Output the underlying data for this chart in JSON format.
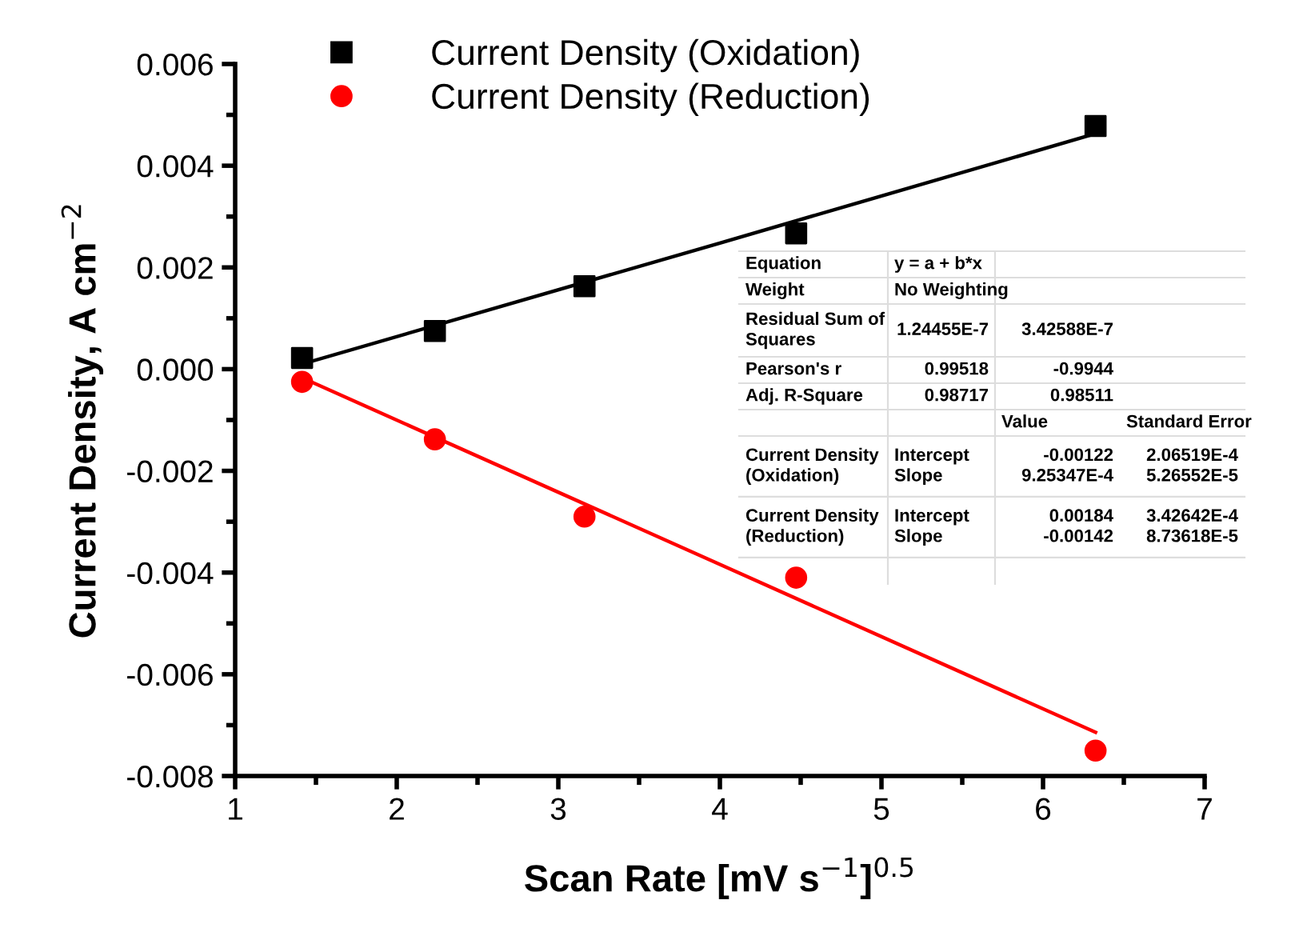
{
  "chart_data": {
    "type": "scatter",
    "xlabel": "Scan Rate [mV s$^{−1}$]$^{0.5}$",
    "ylabel": "Current Density, A cm$^{−2}$",
    "x": [
      1.414,
      2.236,
      3.162,
      4.472,
      6.325
    ],
    "series": [
      {
        "name": "Current Density (Oxidation)",
        "color": "#000000",
        "marker": "square",
        "values": [
          0.00022,
          0.00075,
          0.00163,
          0.00267,
          0.00478
        ]
      },
      {
        "name": "Current Density (Reduction)",
        "color": "#ff0000",
        "marker": "circle",
        "values": [
          -0.00025,
          -0.00138,
          -0.0029,
          -0.0041,
          -0.0075
        ]
      },
      {
        "type": "line",
        "color": "#000000",
        "x": [
          1.414,
          4,
          6.325
        ],
        "values": [
          0.0001,
          0.00248,
          0.00463
        ]
      },
      {
        "type": "line",
        "color": "#ff0000",
        "x": [
          1.414,
          4,
          6.325
        ],
        "values": [
          -0.00017,
          -0.00384,
          -0.00714
        ]
      }
    ],
    "xlim": [
      1,
      7
    ],
    "xticks": [
      1,
      2,
      3,
      4,
      5,
      6,
      7
    ],
    "ylim": [
      -0.008,
      0.006
    ],
    "yticks": [
      {
        "value": -0.008,
        "label": "-0.008"
      },
      {
        "value": -0.006,
        "label": "-0.006"
      },
      {
        "value": -0.004,
        "label": "-0.004"
      },
      {
        "value": -0.002,
        "label": "-0.002"
      },
      {
        "value": 0,
        "label": "0.000"
      },
      {
        "value": 0.002,
        "label": "0.002"
      },
      {
        "value": 0.004,
        "label": "0.004"
      },
      {
        "value": 0.006,
        "label": "0.006"
      }
    ],
    "grid": false,
    "legend": "top left",
    "annotations": [
      "Equation\ty = a + b*x",
      "Weight\tNo Weighting",
      "Residual Sum of\nSquares\t1.24455E-7\t3.42588E-7",
      "Pearson's r\t0.99518\t-0.9944",
      "Adj. R-Square\t0.98717\t0.98511",
      "\t\tValue\tStandard Error",
      "Current Density\n(Oxidation)\tIntercept\nSlope\t-0.00122\n9.25347E-4\t2.06519E-4\n5.26552E-5",
      "Current Density\n(Reduction)\tIntercept\nSlope\t0.00184\n-0.00142\t3.42642E-4\n8.73618E-5"
    ]
  }
}
